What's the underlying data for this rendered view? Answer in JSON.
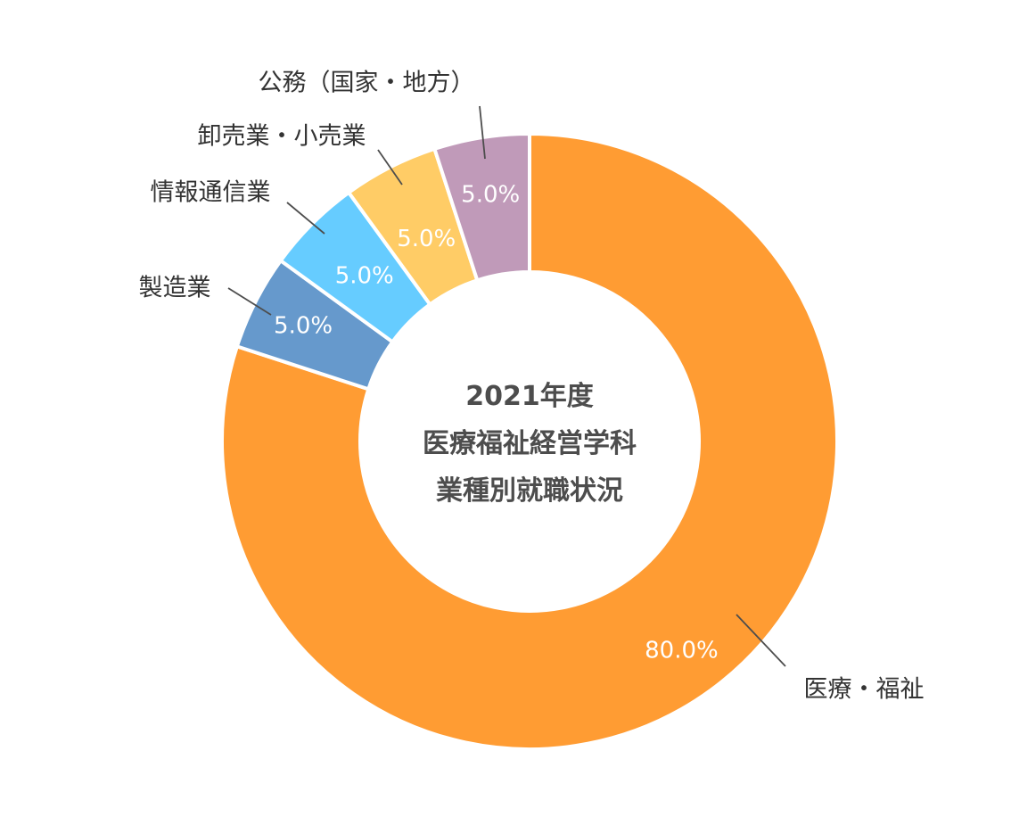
{
  "chart_data": {
    "type": "pie",
    "title_lines": [
      "2021年度",
      "医療福祉経営学科",
      "業種別就職状況"
    ],
    "slices": [
      {
        "label": "医療・福祉",
        "value": 80.0,
        "value_label": "80.0%",
        "color": "#FF9C33"
      },
      {
        "label": "製造業",
        "value": 5.0,
        "value_label": "5.0%",
        "color": "#6699CC"
      },
      {
        "label": "情報通信業",
        "value": 5.0,
        "value_label": "5.0%",
        "color": "#66CCFF"
      },
      {
        "label": "卸売業・小売業",
        "value": 5.0,
        "value_label": "5.0%",
        "color": "#FFCC66"
      },
      {
        "label": "公務（国家・地方）",
        "value": 5.0,
        "value_label": "5.0%",
        "color": "#C09AB9"
      }
    ],
    "value_label_color": "#ffffff",
    "category_label_color": "#333333",
    "leader_line_color": "#4d4d4d",
    "legend": "none"
  }
}
